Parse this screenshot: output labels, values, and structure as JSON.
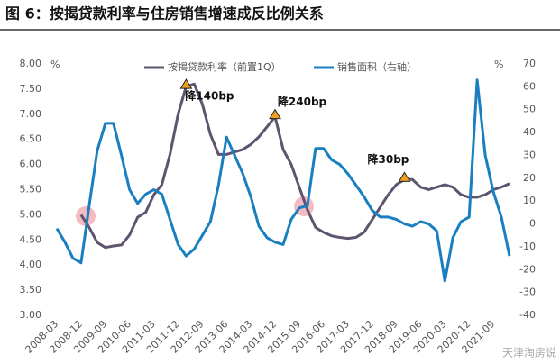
{
  "chart_data": {
    "type": "line",
    "title": "图 6：按揭贷款利率与住房销售增速成反比例关系",
    "y_unit": "%",
    "y2_unit": "%",
    "categories": [
      "2008-03",
      null,
      null,
      "2008-12",
      null,
      null,
      "2009-09",
      null,
      null,
      "2010-06",
      null,
      null,
      "2011-03",
      null,
      null,
      "2011-12",
      null,
      null,
      "2012-09",
      null,
      null,
      "2013-06",
      null,
      null,
      "2014-03",
      null,
      null,
      "2014-12",
      null,
      null,
      "2015-09",
      null,
      null,
      "2016-06",
      null,
      null,
      "2017-03",
      null,
      null,
      "2017-12",
      null,
      null,
      "2018-09",
      null,
      null,
      "2019-06",
      null,
      null,
      "2020-03",
      null,
      null,
      "2020-12",
      null,
      null,
      "2021-09",
      null,
      null
    ],
    "series": [
      {
        "name": "按揭贷款利率（前置1Q）",
        "color": "#5e5470",
        "axis": "y",
        "values": [
          null,
          null,
          null,
          5.0,
          4.75,
          4.45,
          4.35,
          4.38,
          4.4,
          4.6,
          4.95,
          5.05,
          5.4,
          5.6,
          6.2,
          7.0,
          7.55,
          7.6,
          7.2,
          6.6,
          6.2,
          6.2,
          6.25,
          6.3,
          6.4,
          6.55,
          6.75,
          6.95,
          6.3,
          6.0,
          5.55,
          5.1,
          4.75,
          4.65,
          4.58,
          4.55,
          4.53,
          4.55,
          4.65,
          4.9,
          5.15,
          5.4,
          5.6,
          5.7,
          5.7,
          5.55,
          5.5,
          5.55,
          5.6,
          5.55,
          5.4,
          5.35,
          5.35,
          5.4,
          5.5,
          5.55,
          5.62
        ]
      },
      {
        "name": "销售面积（右轴）",
        "color": "#1a7fc1",
        "axis": "y2",
        "values": [
          -2,
          -8,
          -15,
          -17,
          8,
          32,
          44,
          44,
          30,
          15,
          9,
          13,
          15,
          13,
          2,
          -9,
          -14,
          -11,
          -5,
          1,
          17,
          38,
          30,
          22,
          12,
          -1,
          -6,
          -8,
          -9,
          2,
          7,
          8,
          33,
          33,
          28,
          26,
          22,
          17,
          12,
          6,
          3,
          3,
          2,
          0,
          -1,
          1,
          0,
          -3,
          -25,
          -6,
          1,
          3,
          63,
          30,
          14,
          3,
          -14
        ]
      }
    ],
    "ylim": [
      3,
      8
    ],
    "yticks": [
      {
        "value": 3,
        "label": "3.00"
      },
      {
        "value": 3.5,
        "label": "3.50"
      },
      {
        "value": 4,
        "label": "4.00"
      },
      {
        "value": 4.5,
        "label": "4.50"
      },
      {
        "value": 5,
        "label": "5.00"
      },
      {
        "value": 5.5,
        "label": "5.50"
      },
      {
        "value": 6,
        "label": "6.00"
      },
      {
        "value": 6.5,
        "label": "6.50"
      },
      {
        "value": 7,
        "label": "7.00"
      },
      {
        "value": 7.5,
        "label": "7.50"
      },
      {
        "value": 8,
        "label": "8.00"
      }
    ],
    "y2lim": [
      -40,
      70
    ],
    "y2ticks": [
      -40,
      -30,
      -20,
      -10,
      0,
      10,
      20,
      30,
      40,
      50,
      60,
      70
    ],
    "annotations": [
      {
        "text": "降140bp",
        "index": 16
      },
      {
        "text": "降240bp",
        "index": 27
      },
      {
        "text": "降30bp",
        "index": 43
      }
    ],
    "grid": false,
    "legend": "top",
    "watermark": "天津淘房说"
  }
}
